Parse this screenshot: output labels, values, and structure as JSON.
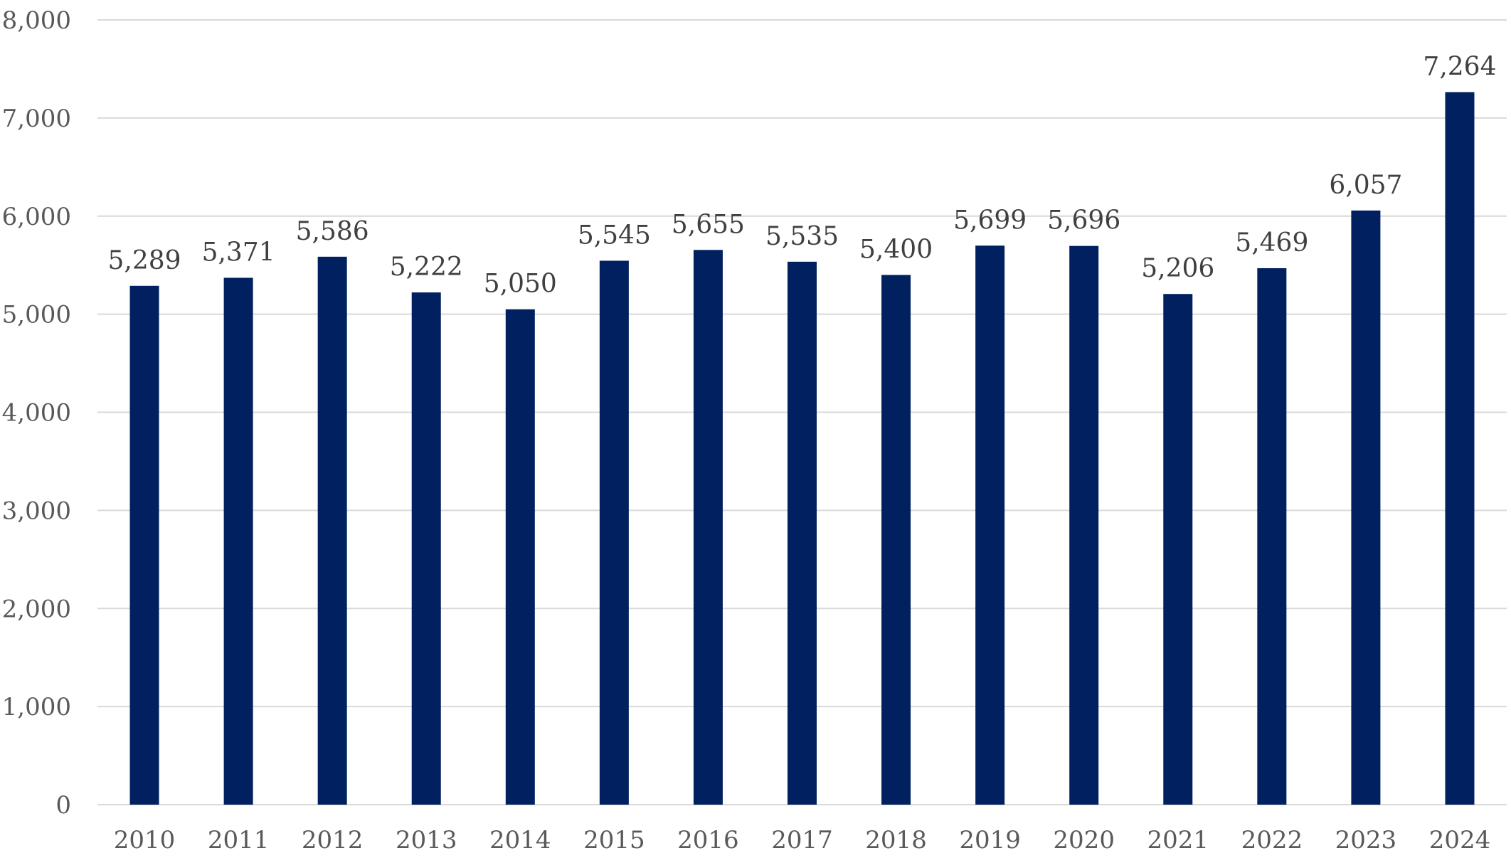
{
  "chart_data": {
    "type": "bar",
    "title": "",
    "xlabel": "",
    "ylabel": "",
    "categories": [
      "2010",
      "2011",
      "2012",
      "2013",
      "2014",
      "2015",
      "2016",
      "2017",
      "2018",
      "2019",
      "2020",
      "2021",
      "2022",
      "2023",
      "2024"
    ],
    "values": [
      5289,
      5371,
      5586,
      5222,
      5050,
      5545,
      5655,
      5535,
      5400,
      5699,
      5696,
      5206,
      5469,
      6057,
      7264
    ],
    "value_labels": [
      "5,289",
      "5,371",
      "5,586",
      "5,222",
      "5,050",
      "5,545",
      "5,655",
      "5,535",
      "5,400",
      "5,699",
      "5,696",
      "5,206",
      "5,469",
      "6,057",
      "7,264"
    ],
    "ylim": [
      0,
      8000
    ],
    "yticks": [
      0,
      1000,
      2000,
      3000,
      4000,
      5000,
      6000,
      7000,
      8000
    ],
    "ytick_labels": [
      "0",
      "1,000",
      "2,000",
      "3,000",
      "4,000",
      "5,000",
      "6,000",
      "7,000",
      "8,000"
    ],
    "grid": true,
    "legend": "none",
    "bar_color": "#002060"
  }
}
